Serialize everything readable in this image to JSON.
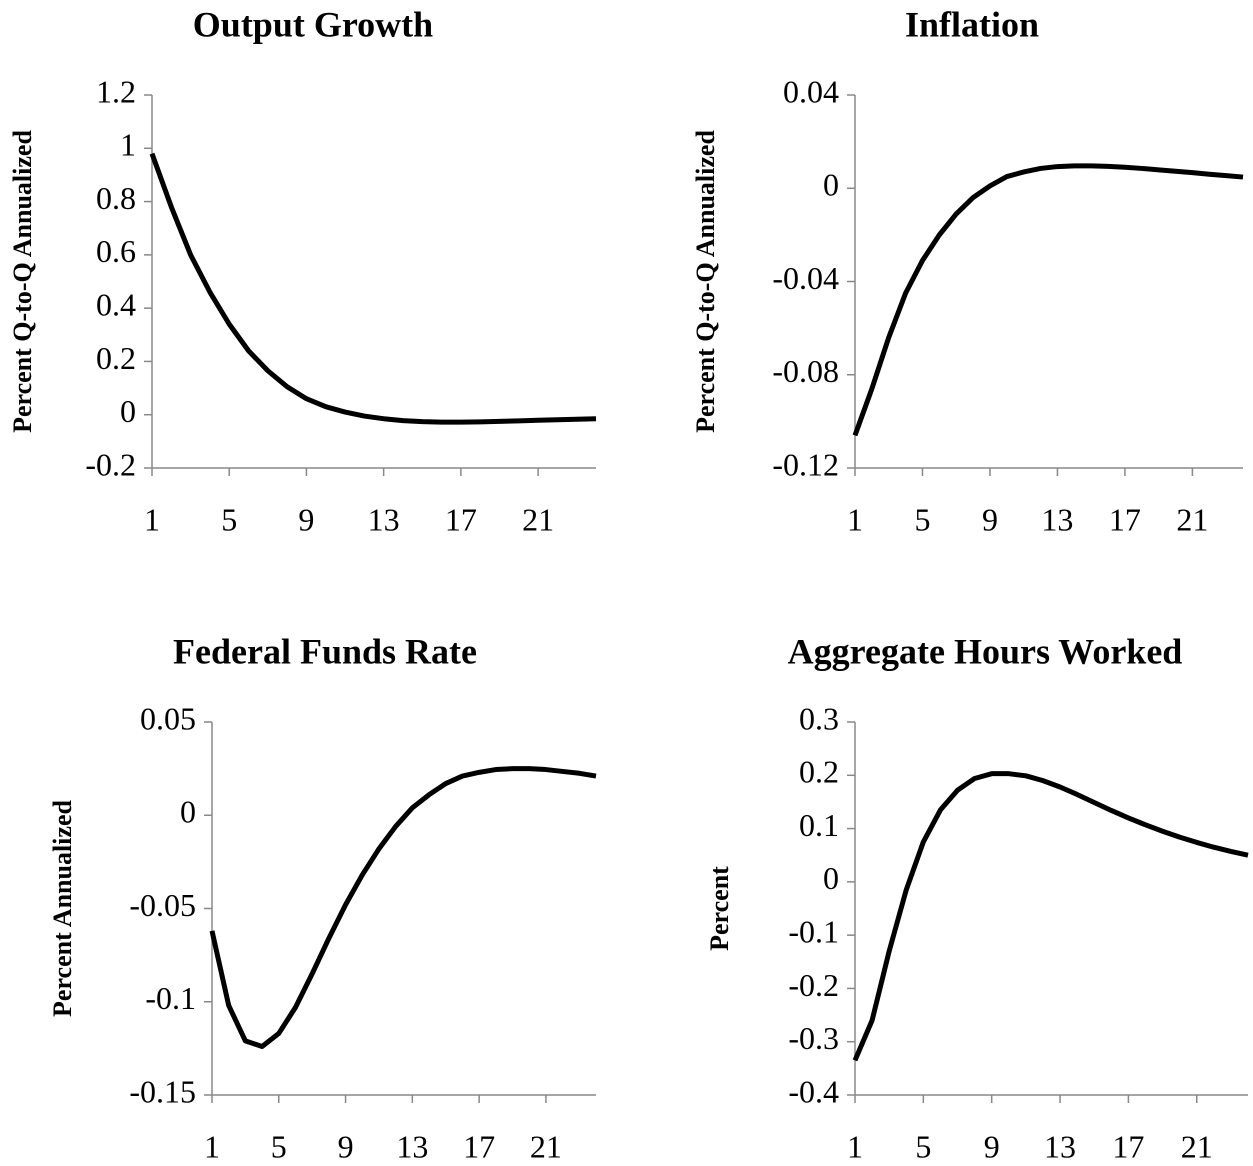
{
  "chart_data": [
    {
      "type": "line",
      "title": "Output Growth",
      "ylabel": "Percent Q-to-Q Annualized",
      "color": "#000000",
      "x": [
        1,
        2,
        3,
        4,
        5,
        6,
        7,
        8,
        9,
        10,
        11,
        12,
        13,
        14,
        15,
        16,
        17,
        18,
        19,
        20,
        21,
        22,
        23,
        24
      ],
      "values": [
        0.98,
        0.78,
        0.6,
        0.46,
        0.34,
        0.24,
        0.165,
        0.105,
        0.06,
        0.03,
        0.01,
        -0.005,
        -0.015,
        -0.022,
        -0.026,
        -0.028,
        -0.028,
        -0.027,
        -0.025,
        -0.023,
        -0.021,
        -0.019,
        -0.017,
        -0.015
      ],
      "xlim": [
        1,
        24
      ],
      "xticks": [
        1,
        5,
        9,
        13,
        17,
        21
      ],
      "ylim": [
        -0.2,
        1.2
      ],
      "yticks": [
        -0.2,
        0,
        0.2,
        0.4,
        0.6,
        0.8,
        1,
        1.2
      ]
    },
    {
      "type": "line",
      "title": "Inflation",
      "ylabel": "Percent Q-to-Q Annualized",
      "color": "#000000",
      "x": [
        1,
        2,
        3,
        4,
        5,
        6,
        7,
        8,
        9,
        10,
        11,
        12,
        13,
        14,
        15,
        16,
        17,
        18,
        19,
        20,
        21,
        22,
        23,
        24
      ],
      "values": [
        -0.106,
        -0.086,
        -0.064,
        -0.045,
        -0.031,
        -0.02,
        -0.011,
        -0.004,
        0.001,
        0.005,
        0.007,
        0.0085,
        0.0093,
        0.0096,
        0.0096,
        0.0094,
        0.009,
        0.0085,
        0.0079,
        0.0073,
        0.0067,
        0.006,
        0.0054,
        0.0048
      ],
      "xlim": [
        1,
        24
      ],
      "xticks": [
        1,
        5,
        9,
        13,
        17,
        21
      ],
      "ylim": [
        -0.12,
        0.04
      ],
      "yticks": [
        -0.12,
        -0.08,
        -0.04,
        0,
        0.04
      ]
    },
    {
      "type": "line",
      "title": "Federal Funds Rate",
      "ylabel": "Percent Annualized",
      "color": "#000000",
      "x": [
        1,
        2,
        3,
        4,
        5,
        6,
        7,
        8,
        9,
        10,
        11,
        12,
        13,
        14,
        15,
        16,
        17,
        18,
        19,
        20,
        21,
        22,
        23,
        24
      ],
      "values": [
        -0.062,
        -0.102,
        -0.121,
        -0.124,
        -0.117,
        -0.103,
        -0.085,
        -0.066,
        -0.048,
        -0.032,
        -0.018,
        -0.006,
        0.004,
        0.011,
        0.017,
        0.021,
        0.023,
        0.0245,
        0.025,
        0.025,
        0.0245,
        0.0235,
        0.0225,
        0.021
      ],
      "xlim": [
        1,
        24
      ],
      "xticks": [
        1,
        5,
        9,
        13,
        17,
        21
      ],
      "ylim": [
        -0.15,
        0.05
      ],
      "yticks": [
        -0.15,
        -0.1,
        -0.05,
        0,
        0.05
      ]
    },
    {
      "type": "line",
      "title": "Aggregate Hours Worked",
      "ylabel": "Percent",
      "color": "#000000",
      "x": [
        1,
        2,
        3,
        4,
        5,
        6,
        7,
        8,
        9,
        10,
        11,
        12,
        13,
        14,
        15,
        16,
        17,
        18,
        19,
        20,
        21,
        22,
        23,
        24
      ],
      "values": [
        -0.335,
        -0.26,
        -0.13,
        -0.015,
        0.075,
        0.135,
        0.172,
        0.194,
        0.203,
        0.203,
        0.199,
        0.19,
        0.178,
        0.164,
        0.149,
        0.134,
        0.12,
        0.107,
        0.095,
        0.084,
        0.074,
        0.065,
        0.057,
        0.05
      ],
      "xlim": [
        1,
        24
      ],
      "xticks": [
        1,
        5,
        9,
        13,
        17,
        21
      ],
      "ylim": [
        -0.4,
        0.3
      ],
      "yticks": [
        -0.4,
        -0.3,
        -0.2,
        -0.1,
        0,
        0.1,
        0.2,
        0.3
      ]
    }
  ]
}
